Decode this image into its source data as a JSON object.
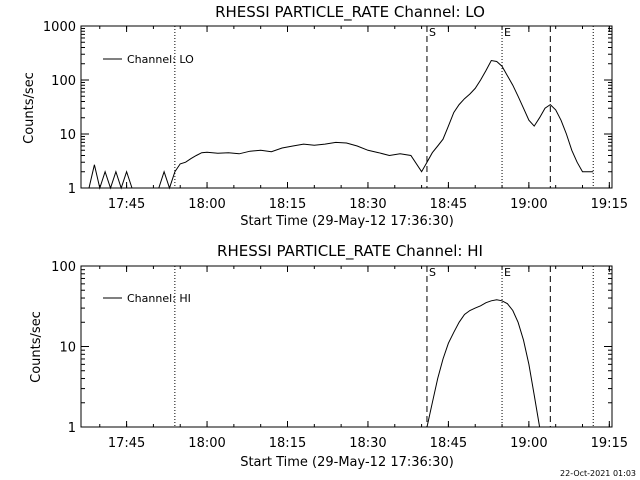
{
  "chart_data": [
    {
      "type": "line",
      "title": "RHESSI PARTICLE_RATE Channel: LO",
      "xlabel": "Start Time (29-May-12 17:36:30)",
      "ylabel": "Counts/sec",
      "y_scale": "log",
      "ylim": [
        1,
        1000
      ],
      "xlim": [
        "17:36:30",
        "19:15:30"
      ],
      "x_tick_labels": [
        "17:45",
        "18:00",
        "18:15",
        "18:30",
        "18:45",
        "19:00",
        "19:15"
      ],
      "y_tick_labels": [
        "1",
        "10",
        "100",
        "1000"
      ],
      "legend": {
        "position": "top-left",
        "entries": [
          "Channel: LO"
        ]
      },
      "markers": [
        {
          "style": "dotted",
          "time": "17:54"
        },
        {
          "style": "dashed",
          "time": "18:41",
          "label": "S"
        },
        {
          "style": "dotted",
          "time": "18:55",
          "label": "E"
        },
        {
          "style": "dashed",
          "time": "19:04"
        },
        {
          "style": "dotted",
          "time": "19:12"
        }
      ],
      "series": [
        {
          "name": "Channel: LO",
          "x": [
            "17:38",
            "17:39",
            "17:40",
            "17:41",
            "17:42",
            "17:43",
            "17:44",
            "17:45",
            "17:46",
            "17:47",
            "17:48",
            "17:49",
            "17:50",
            "17:51",
            "17:52",
            "17:53",
            "17:54",
            "17:55",
            "17:56",
            "17:57",
            "17:58",
            "17:59",
            "18:00",
            "18:02",
            "18:04",
            "18:06",
            "18:08",
            "18:10",
            "18:12",
            "18:14",
            "18:16",
            "18:18",
            "18:20",
            "18:22",
            "18:24",
            "18:26",
            "18:28",
            "18:30",
            "18:32",
            "18:34",
            "18:36",
            "18:38",
            "18:40",
            "18:41",
            "18:42",
            "18:43",
            "18:44",
            "18:45",
            "18:46",
            "18:47",
            "18:48",
            "18:49",
            "18:50",
            "18:51",
            "18:52",
            "18:53",
            "18:54",
            "18:55",
            "18:56",
            "18:57",
            "18:58",
            "18:59",
            "19:00",
            "19:01",
            "19:02",
            "19:03",
            "19:04",
            "19:05",
            "19:06",
            "19:07",
            "19:08",
            "19:09",
            "19:10",
            "19:11",
            "19:12"
          ],
          "y": [
            1,
            2.7,
            1,
            2,
            1,
            2,
            1,
            2,
            1,
            1,
            1,
            1,
            1,
            1,
            2,
            1,
            2,
            2.8,
            3,
            3.5,
            4,
            4.5,
            4.6,
            4.4,
            4.5,
            4.3,
            4.8,
            5,
            4.7,
            5.5,
            6,
            6.5,
            6.2,
            6.5,
            7,
            6.8,
            6,
            5,
            4.5,
            4,
            4.3,
            4,
            2,
            3,
            4.5,
            6,
            8,
            14,
            25,
            35,
            45,
            55,
            70,
            100,
            150,
            230,
            220,
            180,
            120,
            80,
            50,
            30,
            18,
            14,
            20,
            30,
            35,
            28,
            18,
            10,
            5,
            3,
            2,
            2,
            2
          ]
        }
      ]
    },
    {
      "type": "line",
      "title": "RHESSI PARTICLE_RATE Channel: HI",
      "xlabel": "Start Time (29-May-12 17:36:30)",
      "ylabel": "Counts/sec",
      "y_scale": "log",
      "ylim": [
        1,
        100
      ],
      "xlim": [
        "17:36:30",
        "19:15:30"
      ],
      "x_tick_labels": [
        "17:45",
        "18:00",
        "18:15",
        "18:30",
        "18:45",
        "19:00",
        "19:15"
      ],
      "y_tick_labels": [
        "1",
        "10",
        "100"
      ],
      "legend": {
        "position": "top-left",
        "entries": [
          "Channel: HI"
        ]
      },
      "markers": [
        {
          "style": "dotted",
          "time": "17:54"
        },
        {
          "style": "dashed",
          "time": "18:41",
          "label": "S"
        },
        {
          "style": "dotted",
          "time": "18:55",
          "label": "E"
        },
        {
          "style": "dashed",
          "time": "19:04"
        },
        {
          "style": "dotted",
          "time": "19:12"
        }
      ],
      "series": [
        {
          "name": "Channel: HI",
          "x": [
            "18:41",
            "18:42",
            "18:43",
            "18:44",
            "18:45",
            "18:46",
            "18:47",
            "18:48",
            "18:49",
            "18:50",
            "18:51",
            "18:52",
            "18:53",
            "18:54",
            "18:55",
            "18:56",
            "18:57",
            "18:58",
            "18:59",
            "19:00",
            "19:01",
            "19:02"
          ],
          "y": [
            1,
            2,
            4,
            7,
            11,
            15,
            20,
            25,
            28,
            30,
            32,
            35,
            37,
            38,
            37,
            34,
            28,
            20,
            12,
            6,
            2.5,
            1
          ]
        }
      ]
    }
  ],
  "footer": {
    "timestamp": "22-Oct-2021 01:03"
  }
}
